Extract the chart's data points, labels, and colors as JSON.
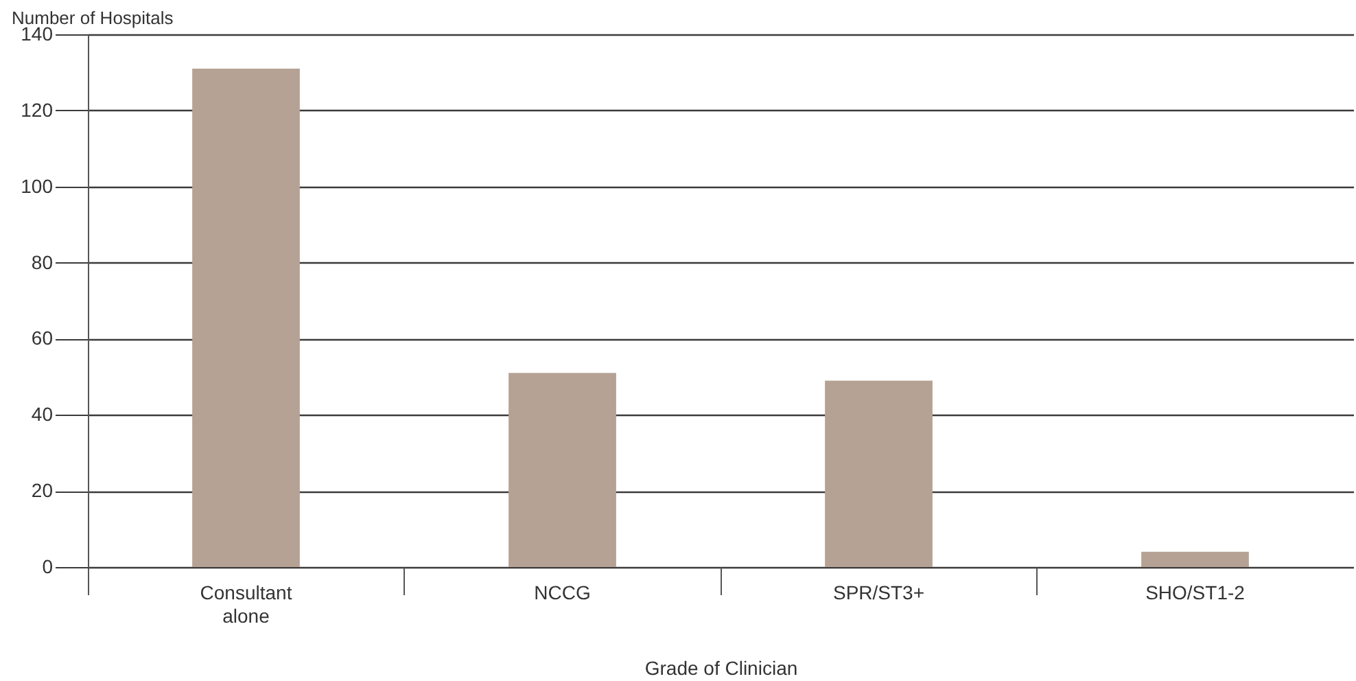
{
  "chart_data": {
    "type": "bar",
    "ylabel": "Number of Hospitals",
    "xlabel": "Grade of Clinician",
    "categories": [
      "Consultant alone",
      "NCCG",
      "SPR/ST3+",
      "SHO/ST1-2"
    ],
    "values": [
      131,
      51,
      49,
      4
    ],
    "color": "#b5a294",
    "ylim": [
      0,
      140
    ],
    "yticks": [
      0,
      20,
      40,
      60,
      80,
      100,
      120,
      140
    ],
    "grid": "y"
  }
}
